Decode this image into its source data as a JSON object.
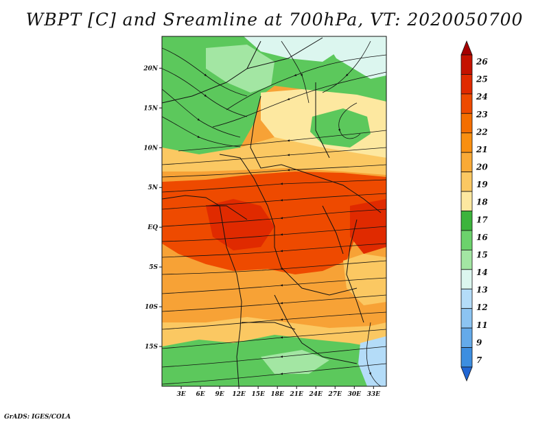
{
  "title": "WBPT [C] and Sreamline at 700hPa, VT: 2020050700",
  "credit": "GrADS: IGES/COLA",
  "map": {
    "lon_range": [
      0,
      35
    ],
    "lat_range": [
      -20,
      24
    ],
    "lat_ticks": [
      {
        "value": 20,
        "label": "20N"
      },
      {
        "value": 15,
        "label": "15N"
      },
      {
        "value": 10,
        "label": "10N"
      },
      {
        "value": 5,
        "label": "5N"
      },
      {
        "value": 0,
        "label": "EQ"
      },
      {
        "value": -5,
        "label": "5S"
      },
      {
        "value": -10,
        "label": "10S"
      },
      {
        "value": -15,
        "label": "15S"
      }
    ],
    "lon_ticks": [
      {
        "value": 3,
        "label": "3E"
      },
      {
        "value": 6,
        "label": "6E"
      },
      {
        "value": 9,
        "label": "9E"
      },
      {
        "value": 12,
        "label": "12E"
      },
      {
        "value": 15,
        "label": "15E"
      },
      {
        "value": 18,
        "label": "18E"
      },
      {
        "value": 21,
        "label": "21E"
      },
      {
        "value": 24,
        "label": "24E"
      },
      {
        "value": 27,
        "label": "27E"
      },
      {
        "value": 30,
        "label": "30E"
      },
      {
        "value": 33,
        "label": "33E"
      }
    ]
  },
  "colorbar": {
    "labels": [
      "26",
      "25",
      "24",
      "23",
      "22",
      "21",
      "20",
      "19",
      "18",
      "17",
      "16",
      "15",
      "14",
      "13",
      "12",
      "11",
      "9",
      "7"
    ],
    "colors": [
      "#a50000",
      "#c41200",
      "#e02a00",
      "#ee4a00",
      "#f46e00",
      "#f98f10",
      "#faaa36",
      "#fbc862",
      "#fde8a0",
      "#3cb43c",
      "#6cd26c",
      "#a3e6a3",
      "#dcf6ef",
      "#b4dcf8",
      "#8cc4f2",
      "#64aaea",
      "#3d8ee0",
      "#2066d4"
    ]
  }
}
